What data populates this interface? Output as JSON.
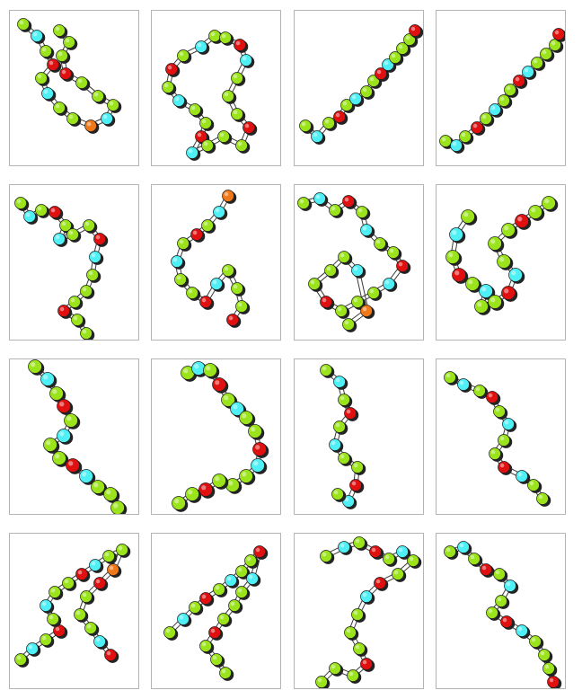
{
  "figure": {
    "layout": "grid",
    "rows": 4,
    "columns": 4,
    "panel_border_color": "#b4b4b4",
    "background_color": "#ffffff",
    "panel_count": 16
  },
  "atom_colors": {
    "carbon_like": "#9be31a",
    "nitrogen_like": "#4ef0f6",
    "oxygen_like": "#e01010",
    "highlight": "#f07818"
  },
  "panels": [
    {
      "id": 1,
      "shape": "cluster"
    },
    {
      "id": 2,
      "shape": "horseshoe"
    },
    {
      "id": 3,
      "shape": "diagonal-chain"
    },
    {
      "id": 4,
      "shape": "diagonal-chain"
    },
    {
      "id": 5,
      "shape": "s-curve"
    },
    {
      "id": 6,
      "shape": "vertical-chain"
    },
    {
      "id": 7,
      "shape": "dense-cluster"
    },
    {
      "id": 8,
      "shape": "loop"
    },
    {
      "id": 9,
      "shape": "zigzag"
    },
    {
      "id": 10,
      "shape": "hook"
    },
    {
      "id": 11,
      "shape": "vertical-chain"
    },
    {
      "id": 12,
      "shape": "vertical-chain"
    },
    {
      "id": 13,
      "shape": "cluster"
    },
    {
      "id": 14,
      "shape": "cluster"
    },
    {
      "id": 15,
      "shape": "zigzag"
    },
    {
      "id": 16,
      "shape": "zigzag"
    }
  ]
}
